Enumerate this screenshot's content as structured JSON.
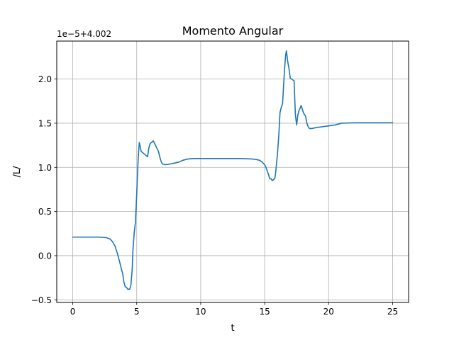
{
  "chart_data": {
    "type": "line",
    "title": "Momento Angular",
    "xlabel": "t",
    "ylabel": "/L/",
    "offset_label": "1e−5+4.002",
    "xlim": [
      -1.25,
      26.25
    ],
    "ylim": [
      -0.53,
      2.43
    ],
    "xticks": [
      0,
      5,
      10,
      15,
      20,
      25
    ],
    "yticks": [
      -0.5,
      0.0,
      0.5,
      1.0,
      1.5,
      2.0
    ],
    "xtick_labels": [
      "0",
      "5",
      "10",
      "15",
      "20",
      "25"
    ],
    "ytick_labels": [
      "−0.5",
      "0.0",
      "0.5",
      "1.0",
      "1.5",
      "2.0"
    ],
    "grid": true,
    "color": "#1f77b4",
    "series": [
      {
        "x": [
          0,
          1,
          2,
          2.6,
          2.9,
          3.1,
          3.3,
          3.5,
          3.7,
          3.8,
          3.9,
          4.0,
          4.1,
          4.2,
          4.3,
          4.45,
          4.55,
          4.65,
          4.7,
          4.8,
          4.9,
          5.0,
          5.1,
          5.15,
          5.2,
          5.25,
          5.35,
          5.6,
          5.85,
          5.95,
          6.05,
          6.3,
          6.5,
          6.7,
          6.8,
          6.9,
          7.0,
          7.2,
          7.5,
          8.0,
          8.3,
          8.6,
          9.0,
          9.5,
          10,
          11,
          12,
          13,
          13.5,
          14,
          14.3,
          14.6,
          14.8,
          15.0,
          15.1,
          15.2,
          15.3,
          15.4,
          15.5,
          15.6,
          15.7,
          15.8,
          15.85,
          15.9,
          16.0,
          16.1,
          16.2,
          16.3,
          16.4,
          16.45,
          16.5,
          16.55,
          16.6,
          16.65,
          16.7,
          16.75,
          16.8,
          16.9,
          17.0,
          17.1,
          17.3,
          17.4,
          17.5,
          17.6,
          17.7,
          17.8,
          17.85,
          17.9,
          18.0,
          18.1,
          18.2,
          18.3,
          18.4,
          18.5,
          18.7,
          19.0,
          19.5,
          20.0,
          20.5,
          21.0,
          22,
          23,
          24,
          25
        ],
        "y": [
          0.21,
          0.21,
          0.21,
          0.205,
          0.19,
          0.16,
          0.11,
          0.02,
          -0.09,
          -0.15,
          -0.2,
          -0.3,
          -0.35,
          -0.36,
          -0.38,
          -0.38,
          -0.33,
          -0.15,
          0.05,
          0.25,
          0.38,
          0.7,
          1.05,
          1.18,
          1.28,
          1.25,
          1.18,
          1.15,
          1.12,
          1.22,
          1.27,
          1.3,
          1.24,
          1.18,
          1.12,
          1.07,
          1.04,
          1.03,
          1.035,
          1.05,
          1.06,
          1.08,
          1.095,
          1.1,
          1.1,
          1.1,
          1.1,
          1.1,
          1.098,
          1.095,
          1.09,
          1.08,
          1.06,
          1.03,
          1.0,
          0.96,
          0.92,
          0.87,
          0.87,
          0.85,
          0.86,
          0.88,
          0.93,
          1.0,
          1.15,
          1.35,
          1.62,
          1.68,
          1.72,
          1.85,
          1.98,
          2.1,
          2.2,
          2.28,
          2.32,
          2.26,
          2.2,
          2.12,
          2.01,
          2.0,
          1.98,
          1.6,
          1.48,
          1.6,
          1.65,
          1.68,
          1.7,
          1.68,
          1.63,
          1.6,
          1.58,
          1.5,
          1.46,
          1.44,
          1.44,
          1.45,
          1.46,
          1.47,
          1.48,
          1.5,
          1.505,
          1.505,
          1.505,
          1.505
        ]
      }
    ]
  }
}
